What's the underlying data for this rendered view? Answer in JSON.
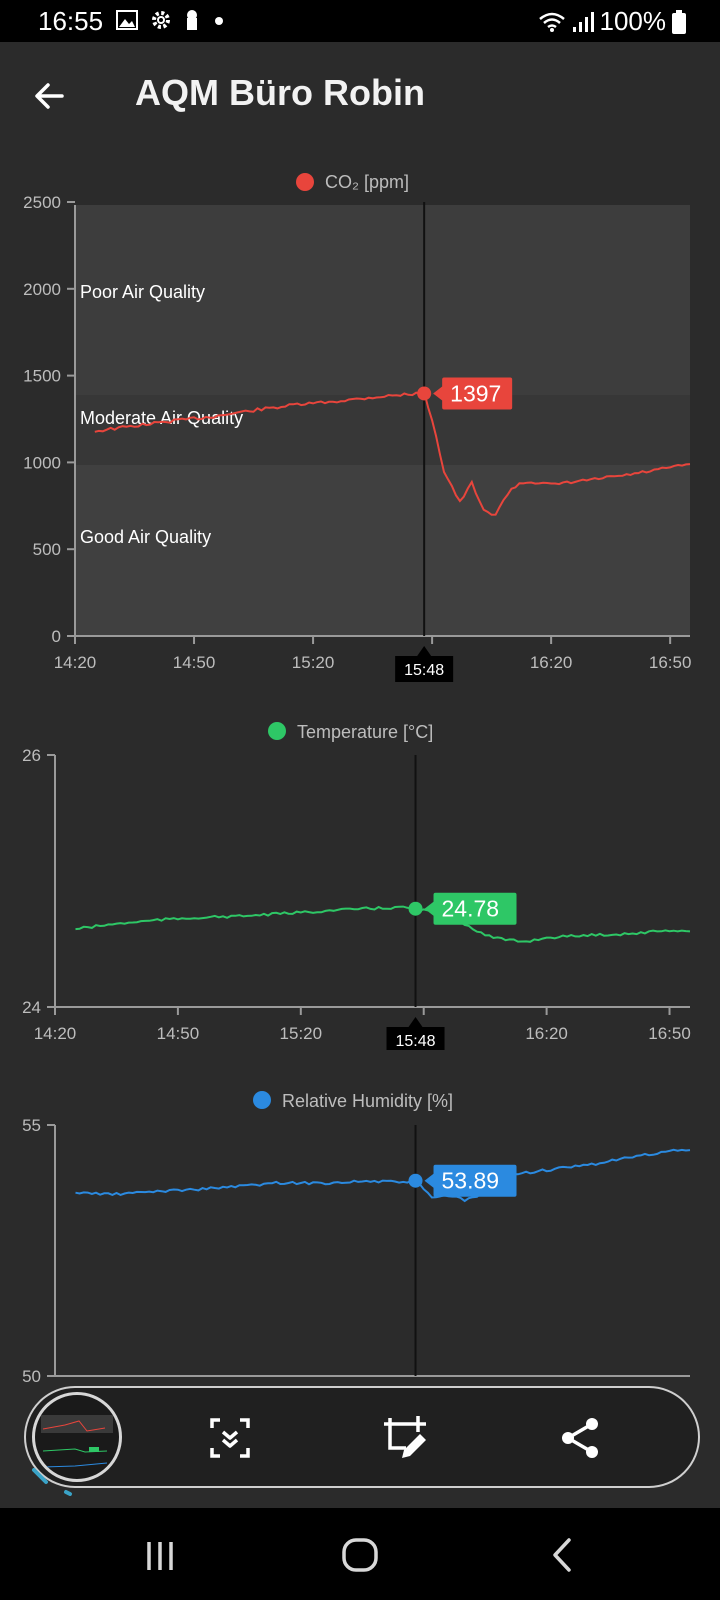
{
  "status_bar": {
    "time": "16:55",
    "battery": "100%"
  },
  "header": {
    "title": "AQM Büro Robin"
  },
  "icons": {
    "back": "arrow-left-icon",
    "capture_scroll": "scroll-capture-icon",
    "edit": "crop-edit-icon",
    "share": "share-icon",
    "nav_recent": "recent-apps-icon",
    "nav_home": "home-icon",
    "nav_back": "back-icon"
  },
  "colors": {
    "co2": "#e8453c",
    "temperature": "#2ec766",
    "humidity": "#2b8ae0"
  },
  "cursor": {
    "time": "15:48"
  },
  "chart_data": [
    {
      "type": "line",
      "legend": "CO₂ [ppm]",
      "color": "#e8453c",
      "xlim": [
        "14:20",
        "16:55"
      ],
      "x_ticks": [
        "14:20",
        "14:50",
        "15:20",
        "15:50",
        "16:20",
        "16:50"
      ],
      "ylim": [
        0,
        2500
      ],
      "y_ticks": [
        "0",
        "500",
        "1000",
        "1500",
        "2000",
        "2500"
      ],
      "bands": [
        {
          "label": "Good Air Quality",
          "from": 0,
          "to": 1000
        },
        {
          "label": "Moderate Air Quality",
          "from": 1000,
          "to": 1400
        },
        {
          "label": "Poor Air Quality",
          "from": 1400,
          "to": 2500
        }
      ],
      "series": [
        {
          "x": [
            "14:25",
            "14:35",
            "14:45",
            "14:55",
            "15:05",
            "15:15",
            "15:25",
            "15:35",
            "15:45",
            "15:48",
            "15:50",
            "15:53",
            "15:57",
            "16:00",
            "16:03",
            "16:06",
            "16:09",
            "16:12",
            "16:15",
            "16:20",
            "16:30",
            "16:40",
            "16:50",
            "16:55"
          ],
          "values": [
            1180,
            1210,
            1240,
            1265,
            1300,
            1330,
            1350,
            1375,
            1395,
            1397,
            1250,
            950,
            770,
            880,
            720,
            700,
            820,
            880,
            890,
            870,
            900,
            930,
            970,
            990
          ]
        }
      ],
      "cursor_value": "1397",
      "cursor_y": 1397
    },
    {
      "type": "line",
      "legend": "Temperature [°C]",
      "color": "#2ec766",
      "xlim": [
        "14:20",
        "16:55"
      ],
      "x_ticks": [
        "14:20",
        "14:50",
        "15:20",
        "15:50",
        "16:20",
        "16:50"
      ],
      "ylim": [
        24,
        26
      ],
      "y_ticks": [
        "24",
        "26"
      ],
      "series": [
        {
          "x": [
            "14:25",
            "14:35",
            "14:45",
            "14:55",
            "15:05",
            "15:15",
            "15:25",
            "15:35",
            "15:45",
            "15:48",
            "15:55",
            "16:00",
            "16:05",
            "16:10",
            "16:15",
            "16:20",
            "16:30",
            "16:40",
            "16:50",
            "16:55"
          ],
          "values": [
            24.62,
            24.66,
            24.69,
            24.71,
            24.72,
            24.74,
            24.76,
            24.78,
            24.79,
            24.78,
            24.74,
            24.66,
            24.57,
            24.53,
            24.52,
            24.55,
            24.57,
            24.58,
            24.61,
            24.6
          ]
        }
      ],
      "cursor_value": "24.78",
      "cursor_y": 24.78
    },
    {
      "type": "line",
      "legend": "Relative Humidity [%]",
      "color": "#2b8ae0",
      "xlim": [
        "14:20",
        "16:55"
      ],
      "ylim": [
        50,
        55
      ],
      "y_ticks": [
        "50",
        "55"
      ],
      "series": [
        {
          "x": [
            "14:25",
            "14:35",
            "14:45",
            "14:55",
            "15:05",
            "15:15",
            "15:25",
            "15:35",
            "15:45",
            "15:48",
            "15:52",
            "15:56",
            "16:00",
            "16:03",
            "16:06",
            "16:10",
            "16:20",
            "16:30",
            "16:40",
            "16:50",
            "16:55"
          ],
          "values": [
            53.65,
            53.62,
            53.68,
            53.72,
            53.78,
            53.85,
            53.84,
            53.88,
            53.86,
            53.89,
            53.55,
            53.6,
            53.5,
            53.58,
            53.7,
            54.0,
            54.1,
            54.2,
            54.35,
            54.48,
            54.5
          ]
        }
      ],
      "cursor_value": "53.89",
      "cursor_y": 53.89
    }
  ]
}
